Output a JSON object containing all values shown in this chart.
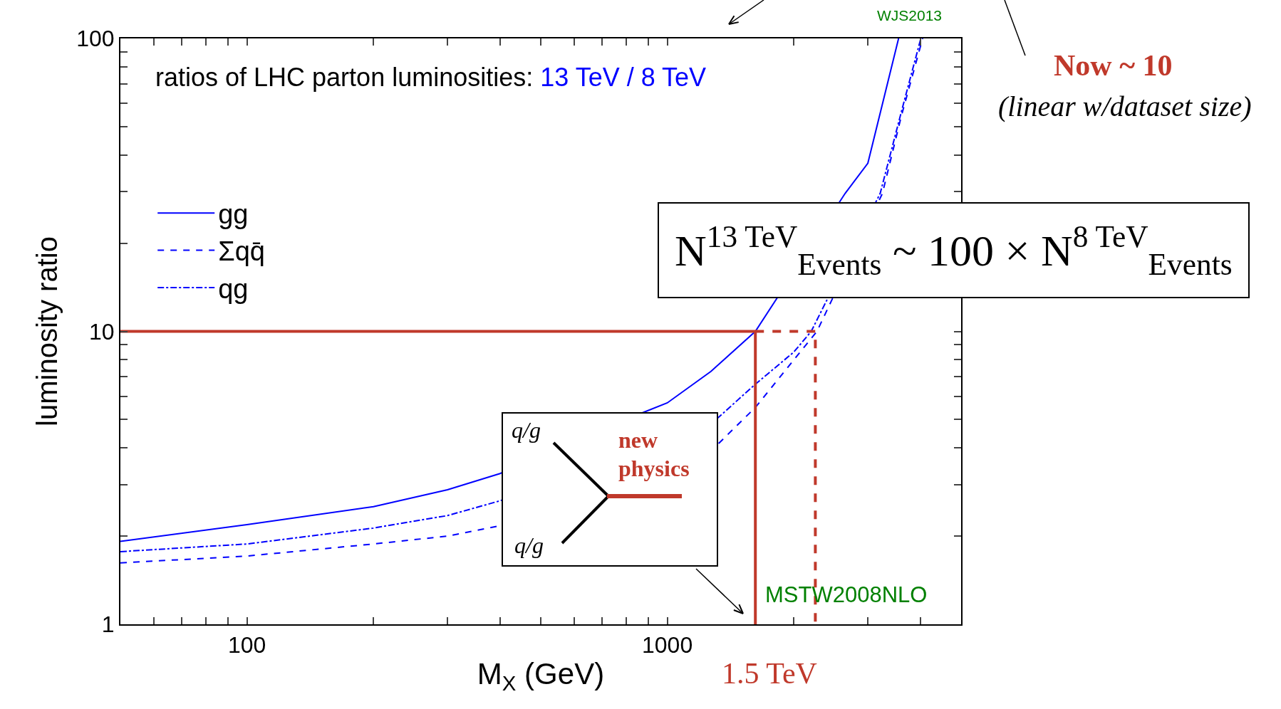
{
  "chart_data": {
    "type": "line",
    "title": "ratios of LHC parton luminosities:",
    "subtitle": "13 TeV / 8 TeV",
    "xlabel": "M$_{X}$ (GeV)",
    "ylabel": "luminosity ratio",
    "log": "xy",
    "xlim": [
      50,
      5000
    ],
    "xticks": [
      {
        "value": 50,
        "label": null
      },
      {
        "value": 60,
        "label": null
      },
      {
        "value": 70,
        "label": null
      },
      {
        "value": 80,
        "label": null
      },
      {
        "value": 90,
        "label": null
      },
      100,
      {
        "value": 200,
        "label": null
      },
      {
        "value": 300,
        "label": null
      },
      {
        "value": 400,
        "label": null
      },
      {
        "value": 500,
        "label": null
      },
      {
        "value": 600,
        "label": null
      },
      {
        "value": 700,
        "label": null
      },
      {
        "value": 800,
        "label": null
      },
      {
        "value": 900,
        "label": null
      },
      1000,
      {
        "value": 2000,
        "label": null
      },
      {
        "value": 3000,
        "label": null
      },
      {
        "value": 4000,
        "label": null
      },
      {
        "value": 5000,
        "label": null
      }
    ],
    "ylim": [
      1,
      100
    ],
    "yticks": [
      1,
      {
        "value": 2,
        "label": null
      },
      {
        "value": 3,
        "label": null
      },
      {
        "value": 4,
        "label": null
      },
      {
        "value": 5,
        "label": null
      },
      {
        "value": 6,
        "label": null
      },
      {
        "value": 7,
        "label": null
      },
      {
        "value": 8,
        "label": null
      },
      {
        "value": 9,
        "label": null
      },
      10,
      {
        "value": 20,
        "label": null
      },
      {
        "value": 30,
        "label": null
      },
      {
        "value": 40,
        "label": null
      },
      {
        "value": 50,
        "label": null
      },
      {
        "value": 60,
        "label": null
      },
      {
        "value": 70,
        "label": null
      },
      {
        "value": 80,
        "label": null
      },
      {
        "value": 90,
        "label": null
      },
      100
    ],
    "grid": false,
    "legend": "top left",
    "marker": "none",
    "series": [
      {
        "name": "gg",
        "color": "#0000ff",
        "line_style": "solid",
        "x": [
          50,
          100,
          200,
          300,
          400,
          880,
          1000,
          1270,
          1620,
          2650,
          3000,
          3550
        ],
        "values": [
          1.92,
          2.19,
          2.52,
          2.88,
          3.27,
          5.3,
          5.7,
          7.3,
          10,
          29.6,
          37.5,
          100
        ]
      },
      {
        "name": "Σqq̄",
        "color": "#0000ff",
        "line_style": "dashed",
        "x": [
          50,
          100,
          200,
          300,
          400,
          1315,
          1620,
          2000,
          2270,
          3250,
          3600,
          4050
        ],
        "values": [
          1.62,
          1.71,
          1.88,
          2.0,
          2.17,
          4.1,
          5.5,
          8.0,
          10,
          29.6,
          54,
          100
        ]
      },
      {
        "name": "qg",
        "color": "#0000ff",
        "line_style": "dashdot",
        "x": [
          50,
          100,
          200,
          300,
          400,
          1320,
          1620,
          2000,
          2200,
          3210,
          3600,
          4010
        ],
        "values": [
          1.77,
          1.88,
          2.13,
          2.35,
          2.64,
          5.07,
          6.6,
          8.5,
          10,
          29.6,
          55.8,
          100
        ]
      },
      {
        "color": "#c0392b",
        "line_style": "solid",
        "x": [
          50,
          1620,
          1620
        ],
        "values": [
          10,
          10,
          1
        ]
      },
      {
        "color": "#c0392b",
        "line_style": "dashed",
        "x": [
          1620,
          2250,
          2250
        ],
        "values": [
          10,
          10,
          1
        ]
      }
    ],
    "annotations": [
      "WJS2013",
      "MSTW2008NLO",
      "Now ~ 10",
      "(linear w/dataset size)",
      "1.5 TeV",
      "N$^{13 TeV}$$_{Events}$ ~ 100 × N$^{8 TeV}$$_{Events}$",
      "q/g",
      "new physics",
      "q/g"
    ]
  }
}
